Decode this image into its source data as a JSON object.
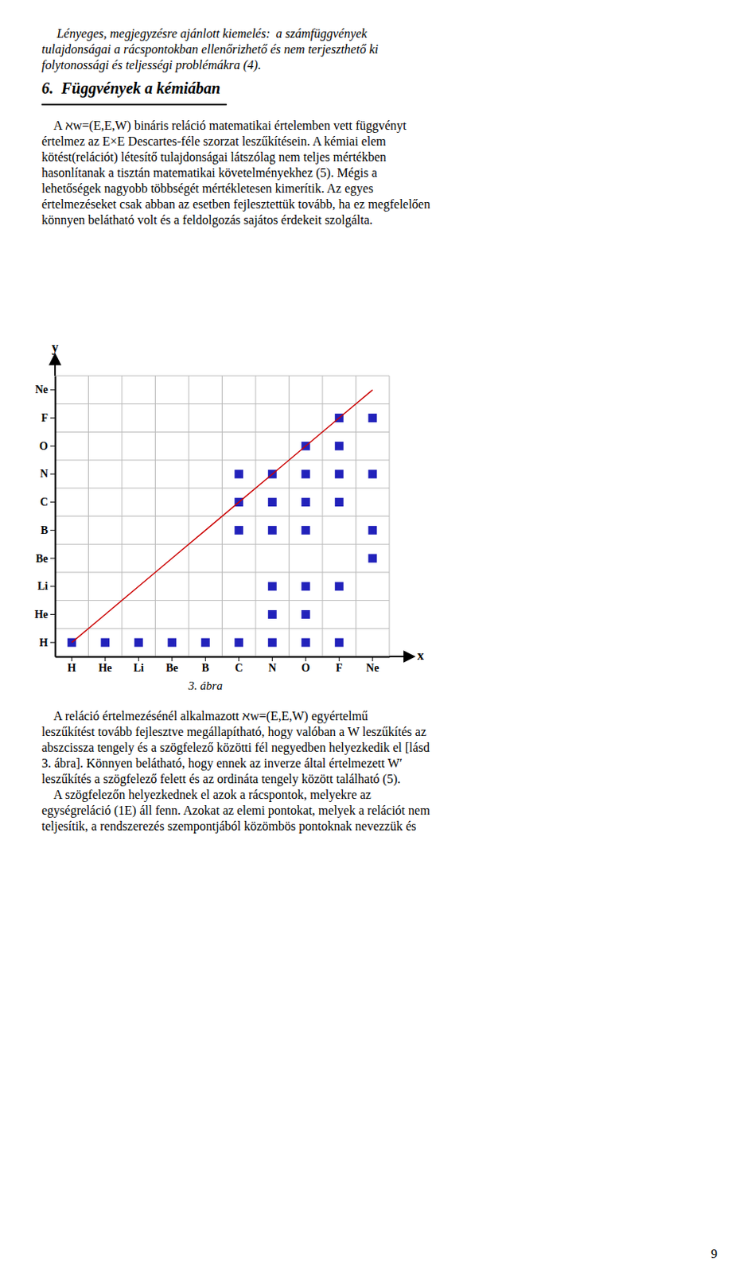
{
  "intro": [
    "     Lényeges, megjegyzésre ajánlott kiemelés:  a számfüggvények",
    "tulajdonságai a rácspontokban ellenőrizhető és nem terjeszthető ki",
    "folytonossági és teljességi problémákra (4)."
  ],
  "heading": "6.  Függvények a kémiában",
  "body": [
    "    A ℵw=(E,E,W) bináris reláció matematikai értelemben vett függvényt",
    "értelmez az E×E Descartes-féle szorzat leszűkítésein. A kémiai elem",
    "kötést(relációt) létesítő tulajdonságai látszólag nem teljes mértékben",
    "hasonlítanak a tisztán matematikai követelményekhez (5). Mégis a",
    "lehetőségek nagyobb többségét mértékletesen kimerítik. Az egyes",
    "értelmezéseket csak abban az esetben fejlesztettük tovább, ha ez megfelelően",
    "könnyen belátható volt és a feldolgozás sajátos érdekeit szolgálta."
  ],
  "chart_data": {
    "type": "scatter",
    "categories": [
      "H",
      "He",
      "Li",
      "Be",
      "B",
      "C",
      "N",
      "O",
      "F",
      "Ne"
    ],
    "x_label": "x",
    "y_label": "y",
    "caption": "3. ábra",
    "grid": true,
    "series": [
      {
        "type": "scatter",
        "marker": "square",
        "color": "#2222bb",
        "x": [
          "H",
          "He",
          "Li",
          "Be",
          "B",
          "C",
          "N",
          "O",
          "F",
          "N",
          "O",
          "N",
          "O",
          "F",
          "Ne",
          "C",
          "N",
          "O",
          "Ne",
          "C",
          "N",
          "O",
          "F",
          "C",
          "N",
          "O",
          "F",
          "Ne",
          "O",
          "F",
          "F",
          "Ne"
        ],
        "y": [
          "H",
          "H",
          "H",
          "H",
          "H",
          "H",
          "H",
          "H",
          "H",
          "He",
          "He",
          "Li",
          "Li",
          "Li",
          "Be",
          "B",
          "B",
          "B",
          "B",
          "C",
          "C",
          "C",
          "C",
          "N",
          "N",
          "N",
          "N",
          "N",
          "O",
          "O",
          "F",
          "F"
        ]
      },
      {
        "type": "line",
        "color": "#cc0000",
        "x": [
          "H",
          "He",
          "Li",
          "Be",
          "B",
          "C",
          "N",
          "O",
          "F",
          "Ne"
        ],
        "y": [
          "H",
          "He",
          "Li",
          "Be",
          "B",
          "C",
          "N",
          "O",
          "F",
          "Ne"
        ]
      }
    ]
  },
  "after_chart": [
    "    A reláció értelmezésénél alkalmazott ℵw=(E,E,W) egyértelmű",
    "leszűkítést tovább fejlesztve megállapítható, hogy valóban a W leszűkítés az",
    "abszcissza tengely és a szögfelező közötti fél negyedben helyezkedik el [lásd",
    "3. ábra]. Könnyen belátható, hogy ennek az inverze által értelmezett W′",
    "leszűkítés a szögfelező felett és az ordináta tengely között található (5).",
    "    A szögfelezőn helyezkednek el azok a rácspontok, melyekre az",
    "egységreláció (1E) áll fenn. Azokat az elemi pontokat, melyek a relációt nem",
    "teljesítik, a rendszerezés szempontjából közömbös pontoknak nevezzük és"
  ],
  "page_number": 9
}
